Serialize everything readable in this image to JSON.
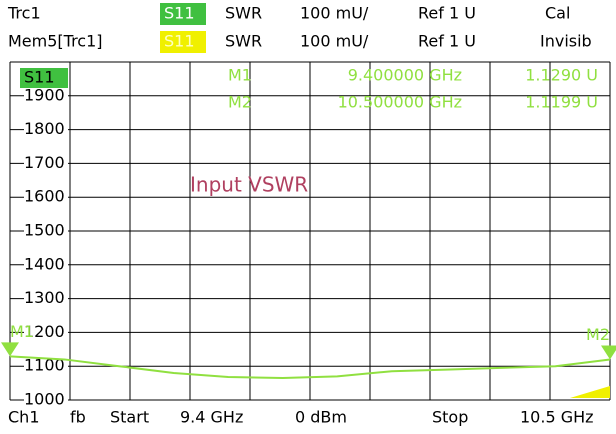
{
  "header": {
    "row1": {
      "trace": "Trc1",
      "param": "S11",
      "format": "SWR",
      "scale": "100 mU/",
      "ref": "Ref 1 U",
      "status": "Cal"
    },
    "row2": {
      "trace": "Mem5[Trc1]",
      "param": "S11",
      "format": "SWR",
      "scale": "100 mU/",
      "ref": "Ref 1 U",
      "status": "Invisib"
    }
  },
  "chart_data": {
    "type": "line",
    "title": "Input VSWR",
    "trace_label": "S11",
    "x": [
      9.4,
      9.5,
      9.6,
      9.7,
      9.8,
      9.9,
      10.0,
      10.1,
      10.2,
      10.3,
      10.4,
      10.5
    ],
    "series": [
      {
        "name": "S11",
        "color": "#90e040",
        "values": [
          1.129,
          1.12,
          1.1,
          1.08,
          1.068,
          1.065,
          1.07,
          1.085,
          1.09,
          1.095,
          1.1,
          1.1199
        ]
      }
    ],
    "xlim": [
      9.4,
      10.5
    ],
    "ylim": [
      1.0,
      2.0
    ],
    "yticks": [
      {
        "value": 1.0,
        "label": "1000"
      },
      {
        "value": 1.1,
        "label": "1100"
      },
      {
        "value": 1.2,
        "label": "1200"
      },
      {
        "value": 1.3,
        "label": "1300"
      },
      {
        "value": 1.4,
        "label": "1400"
      },
      {
        "value": 1.5,
        "label": "1500"
      },
      {
        "value": 1.6,
        "label": "1600"
      },
      {
        "value": 1.7,
        "label": "1700"
      },
      {
        "value": 1.8,
        "label": "1800"
      },
      {
        "value": 1.9,
        "label": "1900"
      }
    ],
    "grid": true,
    "markers": [
      {
        "name": "M1",
        "x": 9.4,
        "x_label": "9.400000 GHz",
        "value": 1.129,
        "value_label": "1.1290 U"
      },
      {
        "name": "M2",
        "x": 10.5,
        "x_label": "10.500000 GHz",
        "value": 1.1199,
        "value_label": "1.1199 U"
      }
    ],
    "marker_color": "#90e040"
  },
  "footer": {
    "channel": "Ch1",
    "mode": "fb",
    "start": "Start",
    "start_value": "9.4 GHz",
    "power": "0 dBm",
    "stop": "Stop",
    "stop_value": "10.5 GHz"
  }
}
